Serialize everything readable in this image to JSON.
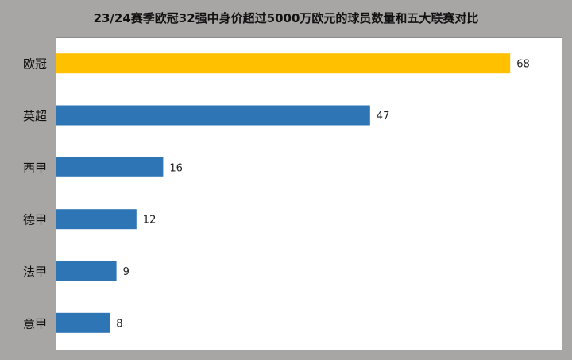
{
  "chart_data": {
    "type": "bar",
    "orientation": "horizontal",
    "title": "23/24赛季欧冠32强中身价超过5000万欧元的球员数量和五大联赛对比",
    "categories": [
      "欧冠",
      "英超",
      "西甲",
      "德甲",
      "法甲",
      "意甲"
    ],
    "values": [
      68,
      47,
      16,
      12,
      9,
      8
    ],
    "xlim": [
      0,
      80
    ],
    "grid": false,
    "legend": "none",
    "colors": {
      "highlight": "#ffc000",
      "default": "#2e75b6",
      "background": "#a8a5a5",
      "plot_background": "#ffffff"
    },
    "highlight_index": 0
  }
}
